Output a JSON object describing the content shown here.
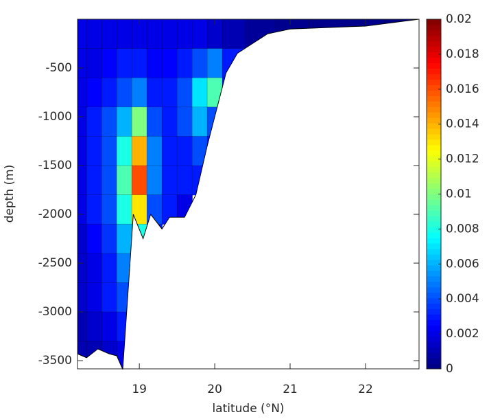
{
  "chart_data": {
    "type": "contour",
    "x_label": "latitude (°N)",
    "y_label": "depth (m)",
    "xlim": [
      18.18,
      22.71
    ],
    "ylim": [
      -3584,
      0
    ],
    "xticks": [
      19,
      20,
      21,
      22
    ],
    "yticks": [
      -500,
      -1000,
      -1500,
      -2000,
      -2500,
      -3000,
      -3500
    ],
    "colormap": "jet",
    "clim": [
      0,
      0.02
    ],
    "cticks": [
      0,
      0.002,
      0.004,
      0.006,
      0.008,
      0.01,
      0.012,
      0.014,
      0.016,
      0.018,
      0.02
    ],
    "x": [
      18.2,
      18.4,
      18.6,
      18.8,
      19.0,
      19.2,
      19.4,
      19.6,
      19.8,
      20.0,
      20.2,
      20.6,
      21.0,
      21.5,
      22.0,
      22.5
    ],
    "y": [
      -150,
      -450,
      -750,
      -1050,
      -1350,
      -1650,
      -1950,
      -2250,
      -2550,
      -2850,
      -3150,
      -3450
    ],
    "z": [
      [
        0.002,
        0.002,
        0.002,
        0.002,
        0.002,
        0.002,
        0.002,
        0.002,
        0.002,
        0.0015,
        0.001,
        0.0005,
        0.0003,
        0.0002,
        0.0002,
        0.0001
      ],
      [
        0.002,
        0.002,
        0.0025,
        0.003,
        0.003,
        0.0025,
        0.0025,
        0.003,
        0.004,
        0.005,
        0.003,
        null,
        null,
        null,
        null,
        null
      ],
      [
        0.002,
        0.0025,
        0.003,
        0.004,
        0.005,
        0.003,
        0.003,
        0.004,
        0.007,
        0.009,
        0.003,
        null,
        null,
        null,
        null,
        null
      ],
      [
        0.002,
        0.003,
        0.004,
        0.006,
        0.01,
        0.004,
        0.003,
        0.004,
        0.006,
        0.004,
        null,
        null,
        null,
        null,
        null,
        null
      ],
      [
        0.002,
        0.003,
        0.004,
        0.008,
        0.014,
        0.005,
        0.003,
        0.003,
        0.004,
        0.003,
        null,
        null,
        null,
        null,
        null,
        null
      ],
      [
        0.002,
        0.003,
        0.004,
        0.009,
        0.016,
        0.005,
        0.003,
        0.003,
        0.003,
        null,
        null,
        null,
        null,
        null,
        null,
        null
      ],
      [
        0.002,
        0.003,
        0.004,
        0.008,
        0.013,
        0.004,
        0.003,
        0.002,
        null,
        null,
        null,
        null,
        null,
        null,
        null,
        null
      ],
      [
        0.0015,
        0.0025,
        0.0035,
        0.006,
        0.008,
        0.003,
        null,
        null,
        null,
        null,
        null,
        null,
        null,
        null,
        null,
        null
      ],
      [
        0.0015,
        0.002,
        0.003,
        0.005,
        0.004,
        null,
        null,
        null,
        null,
        null,
        null,
        null,
        null,
        null,
        null,
        null
      ],
      [
        0.0015,
        0.002,
        0.003,
        0.004,
        null,
        null,
        null,
        null,
        null,
        null,
        null,
        null,
        null,
        null,
        null,
        null
      ],
      [
        0.001,
        0.0015,
        0.002,
        0.003,
        null,
        null,
        null,
        null,
        null,
        null,
        null,
        null,
        null,
        null,
        null,
        null
      ],
      [
        0.001,
        0.001,
        0.0015,
        0.002,
        null,
        null,
        null,
        null,
        null,
        null,
        null,
        null,
        null,
        null,
        null,
        null
      ]
    ],
    "bottom": {
      "x": [
        18.18,
        18.3,
        18.45,
        18.6,
        18.7,
        18.78,
        18.85,
        18.92,
        19.05,
        19.15,
        19.3,
        19.4,
        19.6,
        19.75,
        19.9,
        20.05,
        20.15,
        20.3,
        20.5,
        20.7,
        21.0,
        22.0,
        22.71
      ],
      "y": [
        -3430,
        -3470,
        -3380,
        -3430,
        -3450,
        -3590,
        -2800,
        -2000,
        -2250,
        -2000,
        -2150,
        -2030,
        -2030,
        -1800,
        -1300,
        -850,
        -550,
        -350,
        -250,
        -150,
        -100,
        -70,
        0
      ]
    }
  }
}
